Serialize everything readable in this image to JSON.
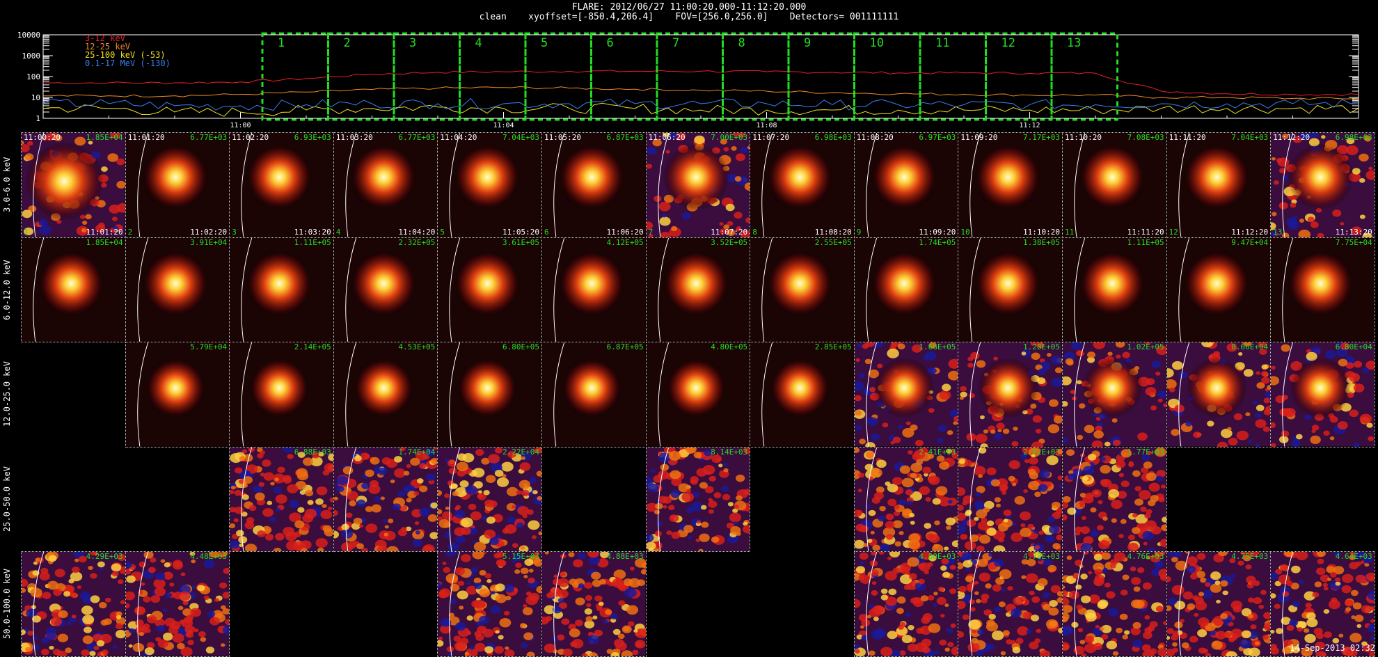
{
  "header": {
    "line1": "FLARE: 2012/06/27 11:00:20.000-11:12:20.000",
    "line2": "clean    xyoffset=[-850.4,206.4]    FOV=[256.0,256.0]    Detectors= 001111111"
  },
  "footer": "14-Sep-2013 02:32",
  "colors": {
    "red": "#e8202a",
    "orange": "#f08a24",
    "yellow": "#f0e020",
    "blue": "#3a7ef0",
    "green": "#22dd22"
  },
  "chart_data": [
    {
      "type": "line",
      "yscale": "log",
      "ylim": [
        1,
        10000
      ],
      "y_tick_labels": [
        "1",
        "10",
        "100",
        "1000",
        "10000"
      ],
      "x_tick_labels": [
        "11:00",
        "11:04",
        "11:08",
        "11:12"
      ],
      "xlim": [
        "10:57:00",
        "11:17:00"
      ],
      "x": [
        "10:57",
        "10:58",
        "10:59",
        "11:00",
        "11:01",
        "11:02",
        "11:03",
        "11:04",
        "11:05",
        "11:06",
        "11:07",
        "11:08",
        "11:09",
        "11:10",
        "11:11",
        "11:12",
        "11:13",
        "11:14",
        "11:15",
        "11:16",
        "11:17"
      ],
      "series": [
        {
          "name": "3-12 keV",
          "color": "#e8202a",
          "values": [
            50,
            50,
            50,
            55,
            80,
            130,
            160,
            170,
            180,
            180,
            180,
            170,
            160,
            150,
            150,
            145,
            145,
            20,
            15,
            14,
            14
          ]
        },
        {
          "name": "12-25 keV",
          "color": "#f08a24",
          "values": [
            12,
            12,
            12,
            14,
            18,
            24,
            28,
            30,
            28,
            25,
            22,
            20,
            17,
            15,
            14,
            13,
            13,
            10,
            10,
            9,
            9
          ]
        },
        {
          "name": "25-100 keV (-53)",
          "color": "#f0e020",
          "values": [
            3,
            3,
            2,
            2,
            2.5,
            3,
            3.5,
            3,
            3,
            3,
            2.5,
            2.5,
            2.5,
            2.5,
            2.5,
            2.5,
            2.5,
            3,
            3,
            3,
            3
          ]
        },
        {
          "name": "0.1-17 MeV (-130)",
          "color": "#3a7ef0",
          "values": [
            5,
            5,
            4,
            4,
            4.5,
            5,
            5,
            5,
            5,
            5,
            5,
            5,
            4.5,
            4.5,
            4.5,
            4.5,
            4.5,
            5,
            5,
            5,
            5
          ]
        }
      ],
      "time_intervals": [
        "1",
        "2",
        "3",
        "4",
        "5",
        "6",
        "7",
        "8",
        "9",
        "10",
        "11",
        "12",
        "13"
      ]
    },
    {
      "type": "heatmap",
      "rows": [
        "3.0-6.0 keV",
        "6.0-12.0 keV",
        "12.0-25.0 keV",
        "25.0-50.0 keV",
        "50.0-100.0 keV"
      ],
      "start_times": [
        "11:00:20",
        "11:01:20",
        "11:02:20",
        "11:03:20",
        "11:04:20",
        "11:05:20",
        "11:06:20",
        "11:07:20",
        "11:08:20",
        "11:09:20",
        "11:10:20",
        "11:11:20",
        "11:12:20"
      ],
      "end_times": [
        "11:01:20",
        "11:02:20",
        "11:03:20",
        "11:04:20",
        "11:05:20",
        "11:06:20",
        "11:07:20",
        "11:08:20",
        "11:09:20",
        "11:10:20",
        "11:11:20",
        "11:12:20",
        "11:13:20"
      ],
      "interval_numbers": [
        "1",
        "2",
        "3",
        "4",
        "5",
        "6",
        "7",
        "8",
        "9",
        "10",
        "11",
        "12",
        "13"
      ],
      "max_values": [
        [
          "1.85E+04",
          "6.77E+03",
          "6.93E+03",
          "6.77E+03",
          "7.04E+03",
          "6.87E+03",
          "7.00E+03",
          "6.98E+03",
          "6.97E+03",
          "7.17E+03",
          "7.08E+03",
          "7.04E+03",
          "6.98E+03"
        ],
        [
          "1.85E+04",
          "3.91E+04",
          "1.11E+05",
          "2.32E+05",
          "3.61E+05",
          "4.12E+05",
          "3.52E+05",
          "2.55E+05",
          "1.74E+05",
          "1.38E+05",
          "1.11E+05",
          "9.47E+04",
          "7.75E+04"
        ],
        [
          null,
          "5.79E+04",
          "2.14E+05",
          "4.53E+05",
          "6.80E+05",
          "6.87E+05",
          "4.80E+05",
          "2.85E+05",
          "1.66E+05",
          "1.28E+05",
          "1.02E+05",
          "8.66E+04",
          "6.80E+04"
        ],
        [
          null,
          null,
          "6.88E+03",
          "1.74E+04",
          "2.22E+04",
          null,
          "8.14E+03",
          null,
          "2.41E+03",
          "2.02E+03",
          "1.77E+03",
          null,
          null
        ],
        [
          "4.29E+03",
          "4.48E+03",
          null,
          null,
          "5.15E+03",
          "4.88E+03",
          null,
          null,
          "4.80E+03",
          "4.78E+03",
          "4.76E+03",
          "4.75E+03",
          "4.64E+03"
        ]
      ]
    }
  ]
}
